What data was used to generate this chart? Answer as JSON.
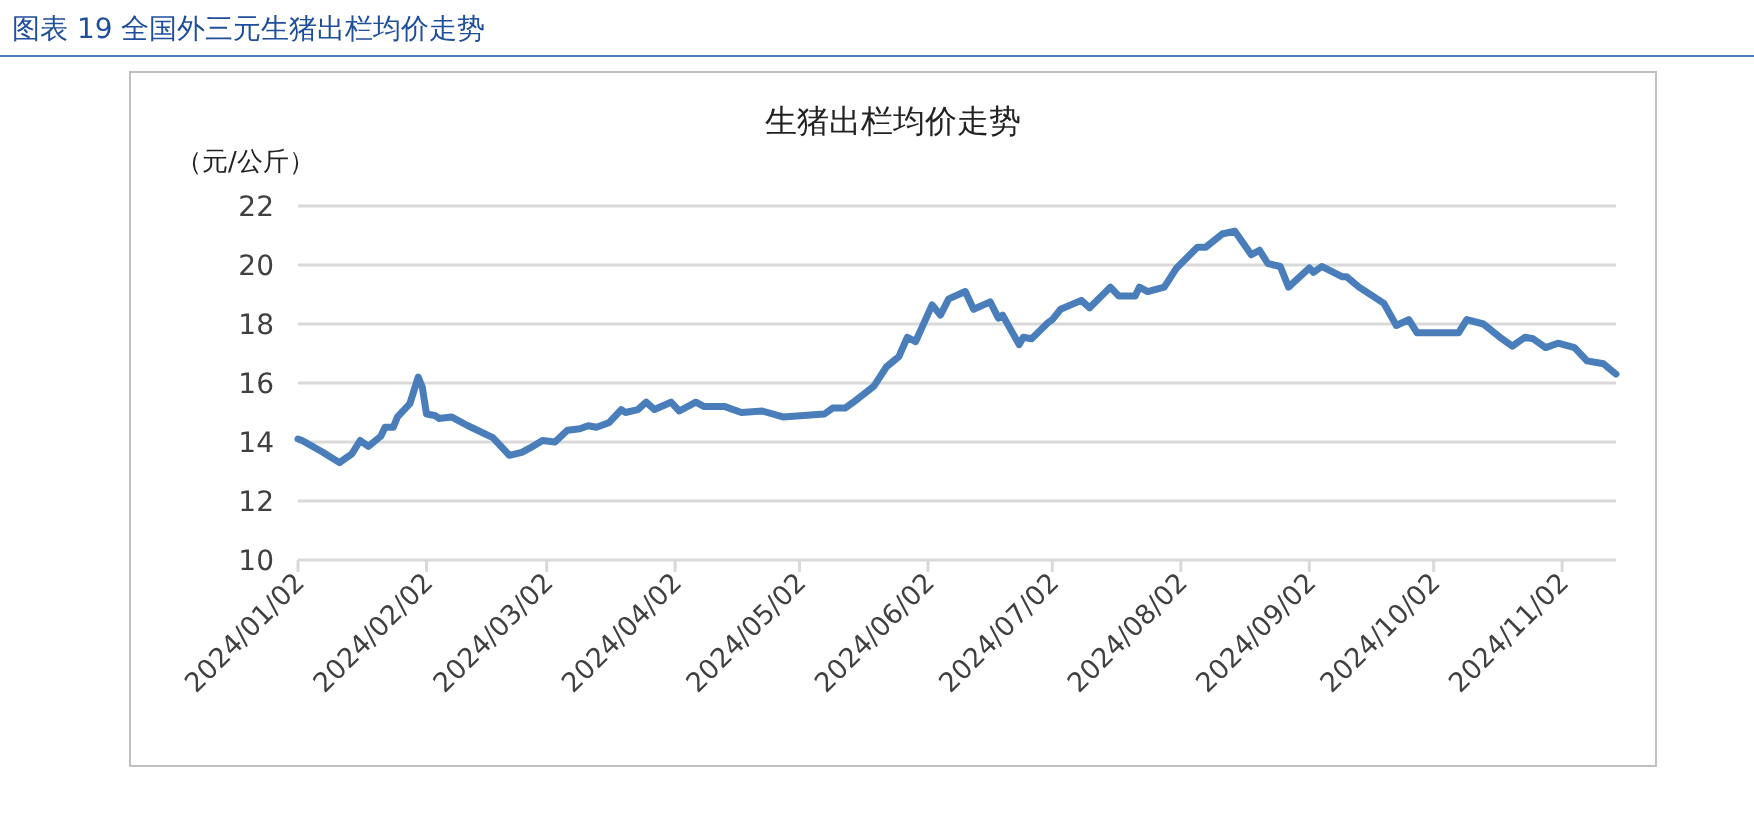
{
  "chart_data": {
    "type": "line",
    "title": "图表 19  全国外三元生猪出栏均价走势",
    "subtitle": "生猪出栏均价走势",
    "ylabel": "（元/公斤）",
    "x": [
      "2024-01-02",
      "2024-01-03",
      "2024-01-08",
      "2024-01-12",
      "2024-01-15",
      "2024-01-17",
      "2024-01-19",
      "2024-01-22",
      "2024-01-23",
      "2024-01-25",
      "2024-01-26",
      "2024-01-29",
      "2024-01-31",
      "2024-02-01",
      "2024-02-02",
      "2024-02-04",
      "2024-02-05",
      "2024-02-08",
      "2024-02-12",
      "2024-02-18",
      "2024-02-22",
      "2024-02-25",
      "2024-02-27",
      "2024-03-01",
      "2024-03-04",
      "2024-03-07",
      "2024-03-10",
      "2024-03-12",
      "2024-03-14",
      "2024-03-17",
      "2024-03-20",
      "2024-03-21",
      "2024-03-24",
      "2024-03-26",
      "2024-03-28",
      "2024-04-01",
      "2024-04-03",
      "2024-04-07",
      "2024-04-09",
      "2024-04-14",
      "2024-04-18",
      "2024-04-23",
      "2024-04-28",
      "2024-05-08",
      "2024-05-10",
      "2024-05-13",
      "2024-05-15",
      "2024-05-20",
      "2024-05-23",
      "2024-05-26",
      "2024-05-28",
      "2024-05-30",
      "2024-06-03",
      "2024-06-05",
      "2024-06-07",
      "2024-06-11",
      "2024-06-13",
      "2024-06-17",
      "2024-06-19",
      "2024-06-20",
      "2024-06-24",
      "2024-06-25",
      "2024-06-27",
      "2024-07-01",
      "2024-07-02",
      "2024-07-04",
      "2024-07-09",
      "2024-07-11",
      "2024-07-16",
      "2024-07-18",
      "2024-07-22",
      "2024-07-23",
      "2024-07-25",
      "2024-07-29",
      "2024-08-01",
      "2024-08-06",
      "2024-08-08",
      "2024-08-12",
      "2024-08-15",
      "2024-08-19",
      "2024-08-21",
      "2024-08-23",
      "2024-08-26",
      "2024-08-28",
      "2024-09-02",
      "2024-09-03",
      "2024-09-05",
      "2024-09-10",
      "2024-09-11",
      "2024-09-14",
      "2024-09-20",
      "2024-09-23",
      "2024-09-26",
      "2024-09-28",
      "2024-10-08",
      "2024-10-10",
      "2024-10-14",
      "2024-10-18",
      "2024-10-21",
      "2024-10-24",
      "2024-10-26",
      "2024-10-29",
      "2024-11-01",
      "2024-11-05",
      "2024-11-08",
      "2024-11-12",
      "2024-11-15"
    ],
    "series": [
      {
        "color": "#4a7ebb",
        "values": [
          14.1,
          14.05,
          13.65,
          13.3,
          13.6,
          14.05,
          13.85,
          14.2,
          14.5,
          14.5,
          14.85,
          15.3,
          16.2,
          15.85,
          14.95,
          14.9,
          14.8,
          14.85,
          14.55,
          14.15,
          13.55,
          13.65,
          13.8,
          14.05,
          14.0,
          14.4,
          14.45,
          14.55,
          14.5,
          14.65,
          15.1,
          15.0,
          15.1,
          15.35,
          15.1,
          15.35,
          15.05,
          15.35,
          15.2,
          15.2,
          15.0,
          15.05,
          14.85,
          14.95,
          15.15,
          15.15,
          15.35,
          15.9,
          16.55,
          16.9,
          17.55,
          17.4,
          18.65,
          18.3,
          18.85,
          19.1,
          18.5,
          18.75,
          18.2,
          18.3,
          17.3,
          17.55,
          17.5,
          18.05,
          18.15,
          18.5,
          18.8,
          18.55,
          19.25,
          18.95,
          18.95,
          19.25,
          19.1,
          19.25,
          19.9,
          20.6,
          20.6,
          21.05,
          21.15,
          20.35,
          20.5,
          20.05,
          19.95,
          19.25,
          19.9,
          19.75,
          19.95,
          19.6,
          19.6,
          19.25,
          18.7,
          17.95,
          18.15,
          17.7,
          17.7,
          18.15,
          18.0,
          17.55,
          17.25,
          17.55,
          17.5,
          17.2,
          17.35,
          17.2,
          16.75,
          16.65,
          16.3
        ]
      }
    ],
    "xlim": [
      "2024-01-02",
      "2024-11-15"
    ],
    "xticks": [
      {
        "value": "2024-01-02",
        "label": "2024/01/02"
      },
      {
        "value": "2024-02-02",
        "label": "2024/02/02"
      },
      {
        "value": "2024-03-02",
        "label": "2024/03/02"
      },
      {
        "value": "2024-04-02",
        "label": "2024/04/02"
      },
      {
        "value": "2024-05-02",
        "label": "2024/05/02"
      },
      {
        "value": "2024-06-02",
        "label": "2024/06/02"
      },
      {
        "value": "2024-07-02",
        "label": "2024/07/02"
      },
      {
        "value": "2024-08-02",
        "label": "2024/08/02"
      },
      {
        "value": "2024-09-02",
        "label": "2024/09/02"
      },
      {
        "value": "2024-10-02",
        "label": "2024/10/02"
      },
      {
        "value": "2024-11-02",
        "label": "2024/11/02"
      }
    ],
    "ylim": [
      10,
      22
    ],
    "yticks": [
      10,
      12,
      14,
      16,
      18,
      20,
      22
    ],
    "grid": "y",
    "marker": "none",
    "line_style": "solid"
  }
}
